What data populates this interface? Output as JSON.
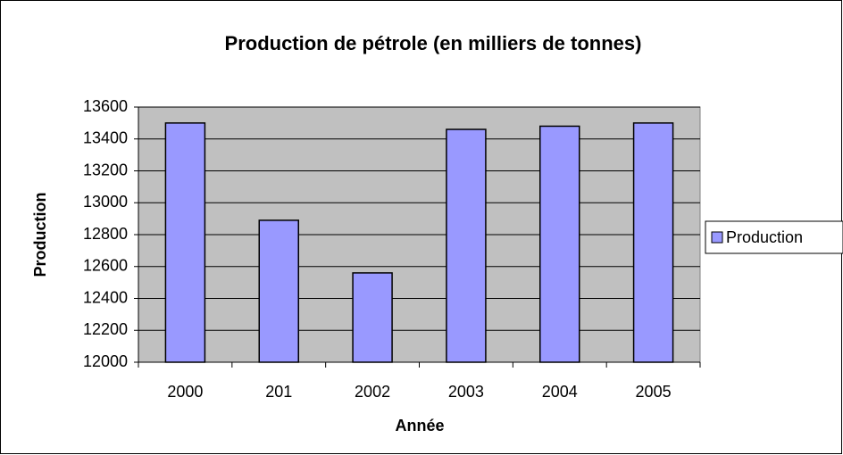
{
  "chart_data": {
    "type": "bar",
    "title": "Production de pétrole (en milliers de tonnes)",
    "x_label": "Année",
    "y_label": "Production",
    "categories": [
      "2000",
      "201",
      "2002",
      "2003",
      "2004",
      "2005"
    ],
    "series": [
      {
        "name": "Production",
        "color": "#9999ff",
        "values": [
          13500,
          12890,
          12560,
          13460,
          13480,
          13500
        ]
      }
    ],
    "ylim": [
      12000,
      13600
    ],
    "yticks": [
      12000,
      12200,
      12400,
      12600,
      12800,
      13000,
      13200,
      13400,
      13600
    ],
    "grid": true,
    "legend": "right"
  }
}
